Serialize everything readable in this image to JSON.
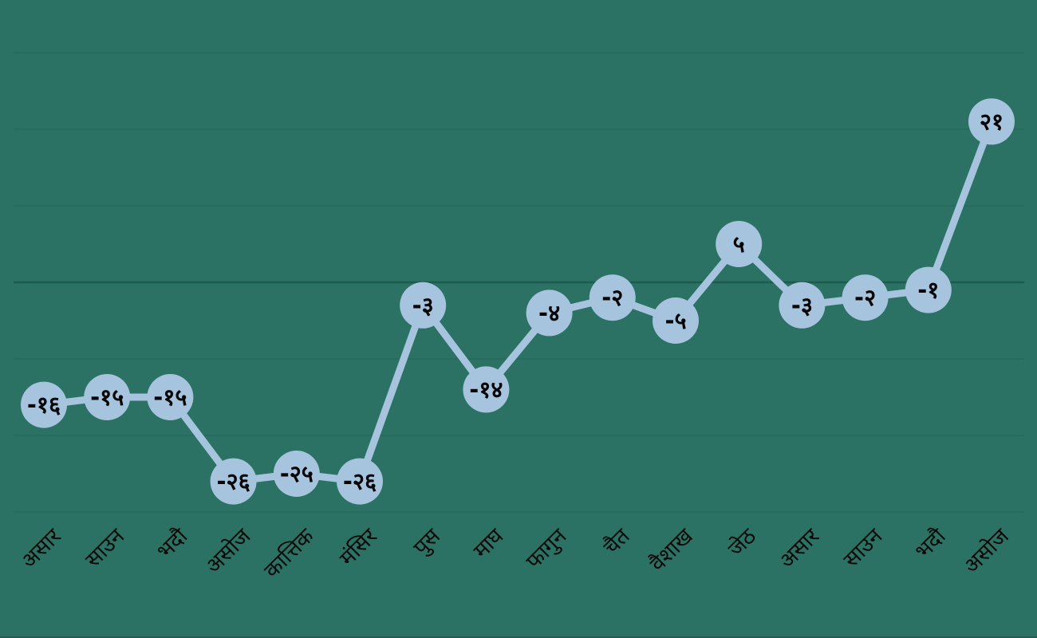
{
  "chart_data": {
    "type": "line",
    "categories": [
      "असार",
      "साउन",
      "भदौ",
      "असोज",
      "कात्तिक",
      "मंसिर",
      "पुस",
      "माघ",
      "फागुन",
      "चैत",
      "वैशाख",
      "जेठ",
      "असार",
      "साउन",
      "भदौ",
      "असोज"
    ],
    "values": [
      -16,
      -15,
      -15,
      -26,
      -25,
      -26,
      -3,
      -14,
      -4,
      -2,
      -5,
      5,
      -3,
      -2,
      -1,
      21
    ],
    "point_labels": [
      "-१६",
      "-१५",
      "-१५",
      "-२६",
      "-२५",
      "-२६",
      "-३",
      "-१४",
      "-४",
      "-२",
      "-५",
      "५",
      "-३",
      "-२",
      "-१",
      "२१"
    ],
    "title": "",
    "subtitle": "",
    "xlabel": "",
    "ylabel": "",
    "ylim": [
      -33,
      33
    ],
    "gridline_values": [
      30,
      20,
      10,
      0,
      -10,
      -20,
      -30
    ],
    "grid": "horizontal-only",
    "legend": "none",
    "marker_style": "large-filled-circle-with-value",
    "x_label_rotation_deg": -45,
    "colors": {
      "background": "#2b7265",
      "gridline": "#256a5c",
      "gridline_zero": "#1c5b4e",
      "line": "#a7c4df",
      "marker_fill": "#a7c4df",
      "value_text": "#060606",
      "axis_label_text": "#0a0a0a",
      "bottom_edge": "#1a4a40"
    }
  }
}
